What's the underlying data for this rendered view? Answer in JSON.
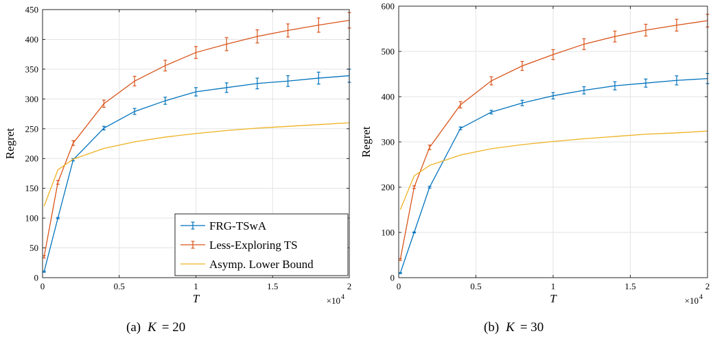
{
  "colors": {
    "frg": "#0072BD",
    "less": "#D95319",
    "bound": "#EDB120",
    "grid": "#e3e3e3",
    "axis": "#262626"
  },
  "legend": {
    "items": [
      "FRG-TSwA",
      "Less-Exploring TS",
      "Asymp. Lower Bound"
    ],
    "placement": "bottom-right",
    "in_panel": 0
  },
  "chart_data": [
    {
      "type": "line",
      "caption": "(a)  K = 20",
      "caption_prefix": "(a)",
      "caption_var": "K",
      "caption_eq": "= 20",
      "xlabel": "T",
      "ylabel": "Regret",
      "x_multiplier": "×10",
      "x_multiplier_exp": "4",
      "xlim": [
        0,
        2
      ],
      "ylim": [
        0,
        450
      ],
      "xticks": [
        "0",
        "0.5",
        "1",
        "1.5",
        "2"
      ],
      "yticks": [
        "0",
        "50",
        "100",
        "150",
        "200",
        "250",
        "300",
        "350",
        "400",
        "450"
      ],
      "grid": true,
      "series": [
        {
          "name": "FRG-TSwA",
          "x": [
            0.01,
            0.1,
            0.2,
            0.4,
            0.6,
            0.8,
            1.0,
            1.2,
            1.4,
            1.6,
            1.8,
            2.0
          ],
          "y": [
            10,
            100,
            198,
            251,
            279,
            297,
            312,
            319,
            326,
            330,
            335,
            339
          ],
          "err": [
            1,
            1,
            2,
            3,
            5,
            6,
            7,
            8,
            9,
            9,
            10,
            11
          ]
        },
        {
          "name": "Less-Exploring TS",
          "x": [
            0.01,
            0.1,
            0.2,
            0.4,
            0.6,
            0.8,
            1.0,
            1.2,
            1.4,
            1.6,
            1.8,
            2.0
          ],
          "y": [
            35,
            160,
            226,
            292,
            330,
            356,
            378,
            392,
            405,
            415,
            424,
            432
          ],
          "err": [
            2,
            3,
            4,
            6,
            8,
            9,
            10,
            11,
            11,
            11,
            12,
            13
          ]
        },
        {
          "name": "Asymp. Lower Bound",
          "x": [
            0.01,
            0.1,
            0.2,
            0.4,
            0.6,
            0.8,
            1.0,
            1.2,
            1.4,
            1.6,
            1.8,
            2.0
          ],
          "y": [
            120,
            181,
            199,
            217,
            228,
            236,
            242,
            247,
            251,
            254,
            257,
            260
          ]
        }
      ]
    },
    {
      "type": "line",
      "caption": "(b)  K = 30",
      "caption_prefix": "(b)",
      "caption_var": "K",
      "caption_eq": "= 30",
      "xlabel": "T",
      "ylabel": "Regret",
      "x_multiplier": "×10",
      "x_multiplier_exp": "4",
      "xlim": [
        0,
        2
      ],
      "ylim": [
        0,
        600
      ],
      "xticks": [
        "0",
        "0.5",
        "1",
        "1.5",
        "2"
      ],
      "yticks": [
        "0",
        "100",
        "200",
        "300",
        "400",
        "500",
        "600"
      ],
      "grid": true,
      "series": [
        {
          "name": "FRG-TSwA",
          "x": [
            0.01,
            0.1,
            0.2,
            0.4,
            0.6,
            0.8,
            1.0,
            1.2,
            1.4,
            1.6,
            1.8,
            2.0
          ],
          "y": [
            10,
            100,
            200,
            330,
            366,
            386,
            402,
            414,
            424,
            430,
            436,
            440
          ],
          "err": [
            1,
            1,
            2,
            3,
            4,
            6,
            7,
            8,
            9,
            9,
            10,
            11
          ]
        },
        {
          "name": "Less-Exploring TS",
          "x": [
            0.01,
            0.1,
            0.2,
            0.4,
            0.6,
            0.8,
            1.0,
            1.2,
            1.4,
            1.6,
            1.8,
            2.0
          ],
          "y": [
            40,
            200,
            288,
            382,
            435,
            468,
            493,
            516,
            533,
            547,
            558,
            568
          ],
          "err": [
            2,
            3,
            5,
            7,
            9,
            10,
            11,
            12,
            12,
            13,
            13,
            14
          ]
        },
        {
          "name": "Asymp. Lower Bound",
          "x": [
            0.01,
            0.1,
            0.2,
            0.4,
            0.6,
            0.8,
            1.0,
            1.2,
            1.4,
            1.6,
            1.8,
            2.0
          ],
          "y": [
            150,
            225,
            248,
            271,
            285,
            294,
            301,
            307,
            312,
            317,
            320,
            324
          ]
        }
      ]
    }
  ]
}
